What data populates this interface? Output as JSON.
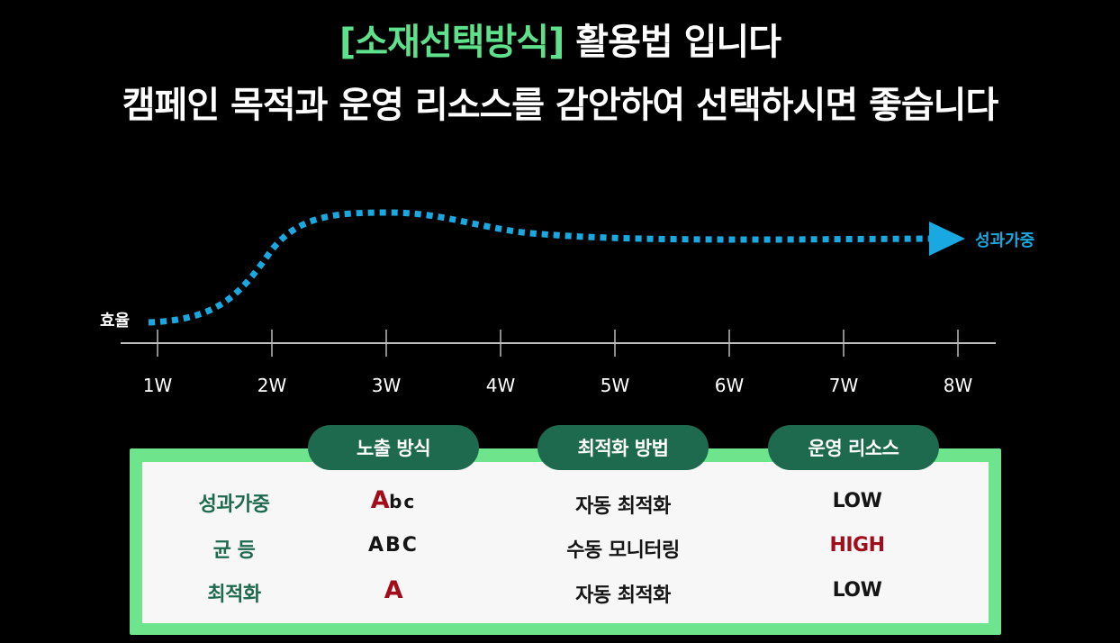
{
  "heading": {
    "highlight": "[소재선택방식]",
    "rest": " 활용법 입니다",
    "subtitle": "캠페인 목적과 운영 리소스를 감안하여 선택하시면 좋습니다"
  },
  "diagram": {
    "y_label": "효율",
    "curve_label": "성과가중",
    "weeks": [
      "1W",
      "2W",
      "3W",
      "4W",
      "5W",
      "6W",
      "7W",
      "8W"
    ],
    "colors": {
      "curve": "#1aa8e0",
      "axis": "#bbbbbb"
    }
  },
  "table": {
    "headers": [
      "노출 방식",
      "최적화 방법",
      "운영 리소스"
    ],
    "rows": [
      {
        "label": "성과가중",
        "exposure_big": "A",
        "exposure_small": "bc",
        "method": "자동 최적화",
        "resource": "LOW"
      },
      {
        "label": "균 등",
        "exposure": "ABC",
        "method": "수동 모니터링",
        "resource": "HIGH"
      },
      {
        "label": "최적화",
        "exposure_big": "A",
        "method": "자동 최적화",
        "resource": "LOW"
      }
    ],
    "colors": {
      "frame": "#6ee48c",
      "pill": "#1e6a4f",
      "label": "#1e6a4f",
      "emphasis": "#a10d1a"
    }
  }
}
